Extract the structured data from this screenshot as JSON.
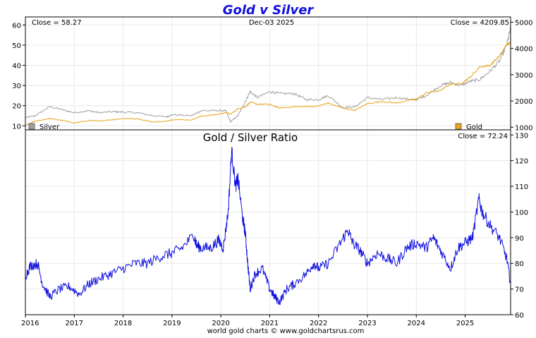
{
  "chart_title": "Gold v Silver",
  "date_label": "Dec-03  2025",
  "footer": "world gold charts © www.goldchartsrus.com",
  "colors": {
    "silver": "#a0a0a0",
    "gold": "#e8a317",
    "ratio": "#1010e0",
    "title": "#1010e0",
    "grid": "#e8e8e8"
  },
  "x_axis": {
    "ticks": [
      "2016",
      "2017",
      "2018",
      "2019",
      "2020",
      "2021",
      "2022",
      "2023",
      "2024",
      "2025"
    ],
    "range": [
      2016.0,
      2025.93
    ]
  },
  "chart_data": [
    {
      "type": "line",
      "title": "",
      "close_left": "Close = 58.27",
      "close_right": "Close = 4209.85",
      "legend": {
        "silver": "Silver",
        "gold": "Gold",
        "silver_placement": "bottom-left",
        "gold_placement": "bottom-right"
      },
      "y_left": {
        "ticks": [
          "10",
          "20",
          "30",
          "40",
          "50",
          "60"
        ],
        "range": [
          8,
          64
        ]
      },
      "y_right": {
        "ticks": [
          "1000",
          "2000",
          "3000",
          "4000",
          "5000"
        ],
        "range": [
          900,
          5200
        ]
      },
      "series": [
        {
          "name": "Silver",
          "axis": "left",
          "x": [
            2016.0,
            2016.2,
            2016.5,
            2016.75,
            2017.0,
            2017.3,
            2017.5,
            2017.8,
            2018.0,
            2018.3,
            2018.6,
            2018.9,
            2019.0,
            2019.4,
            2019.6,
            2019.9,
            2020.1,
            2020.2,
            2020.35,
            2020.5,
            2020.6,
            2020.75,
            2021.0,
            2021.2,
            2021.5,
            2021.75,
            2022.0,
            2022.2,
            2022.5,
            2022.75,
            2023.0,
            2023.3,
            2023.6,
            2023.9,
            2024.0,
            2024.2,
            2024.5,
            2024.7,
            2024.9,
            2025.1,
            2025.3,
            2025.5,
            2025.7,
            2025.85,
            2025.93
          ],
          "values": [
            14.0,
            15.0,
            19.5,
            18.0,
            16.5,
            17.5,
            16.5,
            17.0,
            16.8,
            16.5,
            15.0,
            14.5,
            15.5,
            15.0,
            17.5,
            17.5,
            17.5,
            12.0,
            15.0,
            22.0,
            27.0,
            24.0,
            27.0,
            26.0,
            26.0,
            23.0,
            23.0,
            25.0,
            19.0,
            19.5,
            24.0,
            23.0,
            24.0,
            23.0,
            23.0,
            25.0,
            30.0,
            31.5,
            30.0,
            32.0,
            33.0,
            37.0,
            42.0,
            50.0,
            58.27
          ]
        },
        {
          "name": "Gold",
          "axis": "right",
          "x": [
            2016.0,
            2016.2,
            2016.5,
            2016.75,
            2017.0,
            2017.3,
            2017.5,
            2017.8,
            2018.0,
            2018.3,
            2018.6,
            2018.9,
            2019.0,
            2019.4,
            2019.6,
            2019.9,
            2020.1,
            2020.2,
            2020.35,
            2020.5,
            2020.6,
            2020.75,
            2021.0,
            2021.2,
            2021.5,
            2021.75,
            2022.0,
            2022.2,
            2022.5,
            2022.75,
            2023.0,
            2023.3,
            2023.6,
            2023.9,
            2024.0,
            2024.2,
            2024.5,
            2024.7,
            2024.9,
            2025.1,
            2025.3,
            2025.5,
            2025.7,
            2025.85,
            2025.93
          ],
          "values": [
            1070,
            1230,
            1330,
            1260,
            1160,
            1250,
            1240,
            1290,
            1330,
            1320,
            1200,
            1230,
            1290,
            1280,
            1420,
            1480,
            1560,
            1500,
            1700,
            1780,
            1950,
            1880,
            1870,
            1730,
            1780,
            1780,
            1810,
            1920,
            1720,
            1650,
            1900,
            1980,
            1920,
            2050,
            2060,
            2300,
            2400,
            2650,
            2650,
            2900,
            3300,
            3350,
            3700,
            4150,
            4209.85
          ]
        }
      ]
    },
    {
      "type": "line",
      "title": "Gold  /  Silver Ratio",
      "close_right": "Close = 72.24",
      "y_right": {
        "ticks": [
          "60",
          "70",
          "80",
          "90",
          "100",
          "110",
          "120",
          "130"
        ],
        "range": [
          60,
          132
        ]
      },
      "series": [
        {
          "name": "",
          "axis": "right",
          "x": [
            2016.0,
            2016.1,
            2016.25,
            2016.35,
            2016.5,
            2016.7,
            2016.9,
            2017.1,
            2017.3,
            2017.5,
            2017.75,
            2018.0,
            2018.25,
            2018.5,
            2018.8,
            2019.0,
            2019.2,
            2019.45,
            2019.5,
            2019.6,
            2019.8,
            2019.95,
            2020.05,
            2020.15,
            2020.22,
            2020.3,
            2020.35,
            2020.45,
            2020.5,
            2020.55,
            2020.6,
            2020.7,
            2020.85,
            2021.0,
            2021.1,
            2021.2,
            2021.35,
            2021.5,
            2021.75,
            2021.9,
            2022.0,
            2022.2,
            2022.45,
            2022.6,
            2022.7,
            2022.85,
            2023.0,
            2023.2,
            2023.4,
            2023.6,
            2023.8,
            2024.0,
            2024.2,
            2024.35,
            2024.5,
            2024.7,
            2024.85,
            2025.0,
            2025.15,
            2025.28,
            2025.35,
            2025.5,
            2025.7,
            2025.85,
            2025.93
          ],
          "values": [
            75.0,
            79.0,
            80.0,
            72.0,
            67.0,
            70.0,
            71.0,
            68.0,
            72.0,
            74.0,
            76.0,
            78.0,
            80.0,
            80.0,
            83.0,
            84.0,
            86.0,
            91.0,
            87.0,
            86.0,
            86.0,
            89.0,
            86.0,
            100.0,
            124.0,
            110.0,
            113.0,
            97.0,
            92.0,
            80.0,
            70.0,
            76.0,
            78.0,
            70.0,
            67.0,
            65.0,
            70.0,
            72.0,
            76.0,
            80.0,
            78.0,
            80.0,
            88.0,
            93.0,
            88.0,
            85.0,
            80.0,
            84.0,
            82.0,
            80.0,
            86.0,
            88.0,
            86.0,
            90.0,
            85.0,
            78.0,
            86.0,
            88.0,
            90.0,
            105.0,
            100.0,
            95.0,
            90.0,
            82.0,
            72.24
          ]
        }
      ]
    }
  ]
}
